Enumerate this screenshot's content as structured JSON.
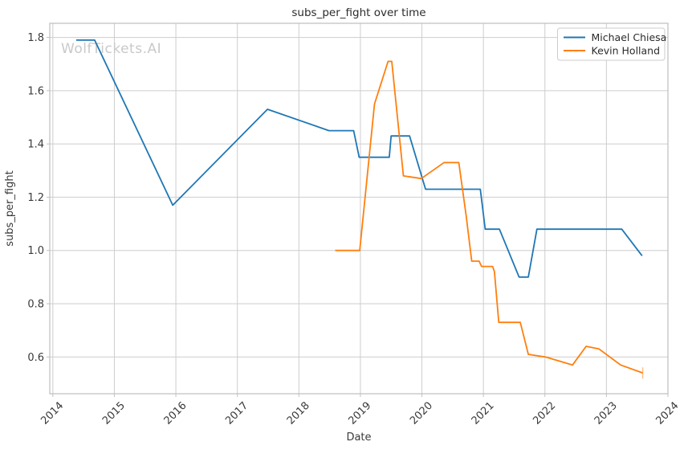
{
  "watermark": "WolfTickets.AI",
  "colors": {
    "series_blue": "#1f77b4",
    "series_orange": "#ff7f0e",
    "grid": "#cdcdcd",
    "spine": "#bebebe",
    "text": "#3a3a3a",
    "watermark": "#c9c9c9",
    "background": "#ffffff"
  },
  "chart_data": {
    "type": "line",
    "title": "subs_per_fight over time",
    "xlabel": "Date",
    "ylabel": "subs_per_fight",
    "grid": true,
    "legend_position": "upper right",
    "xlim": [
      2013.95,
      2024.0
    ],
    "ylim": [
      0.462,
      1.853
    ],
    "x_ticks": [
      2014,
      2015,
      2016,
      2017,
      2018,
      2019,
      2020,
      2021,
      2022,
      2023,
      2024
    ],
    "y_ticks": [
      0.6,
      0.8,
      1.0,
      1.2,
      1.4,
      1.6,
      1.8
    ],
    "x_unit": "decimal_year",
    "series": [
      {
        "name": "Michael Chiesa",
        "color": "#1f77b4",
        "points": [
          [
            2014.38,
            1.79
          ],
          [
            2014.68,
            1.79
          ],
          [
            2015.95,
            1.17
          ],
          [
            2017.49,
            1.53
          ],
          [
            2018.49,
            1.45
          ],
          [
            2018.89,
            1.45
          ],
          [
            2018.98,
            1.35
          ],
          [
            2019.47,
            1.35
          ],
          [
            2019.5,
            1.43
          ],
          [
            2019.8,
            1.43
          ],
          [
            2020.06,
            1.23
          ],
          [
            2020.95,
            1.23
          ],
          [
            2021.03,
            1.08
          ],
          [
            2021.26,
            1.08
          ],
          [
            2021.58,
            0.9
          ],
          [
            2021.73,
            0.9
          ],
          [
            2021.87,
            1.08
          ],
          [
            2023.25,
            1.08
          ],
          [
            2023.58,
            0.98
          ]
        ]
      },
      {
        "name": "Kevin Holland",
        "color": "#ff7f0e",
        "end_marker": "vertical-tick",
        "points": [
          [
            2018.59,
            1.0
          ],
          [
            2018.99,
            1.0
          ],
          [
            2019.23,
            1.55
          ],
          [
            2019.45,
            1.71
          ],
          [
            2019.51,
            1.71
          ],
          [
            2019.7,
            1.28
          ],
          [
            2019.99,
            1.27
          ],
          [
            2020.36,
            1.33
          ],
          [
            2020.6,
            1.33
          ],
          [
            2020.72,
            1.13
          ],
          [
            2020.81,
            0.96
          ],
          [
            2020.93,
            0.96
          ],
          [
            2020.97,
            0.94
          ],
          [
            2021.15,
            0.94
          ],
          [
            2021.18,
            0.92
          ],
          [
            2021.25,
            0.73
          ],
          [
            2021.6,
            0.73
          ],
          [
            2021.73,
            0.61
          ],
          [
            2022.01,
            0.6
          ],
          [
            2022.45,
            0.57
          ],
          [
            2022.67,
            0.64
          ],
          [
            2022.88,
            0.63
          ],
          [
            2023.23,
            0.57
          ],
          [
            2023.59,
            0.54
          ]
        ]
      }
    ]
  }
}
